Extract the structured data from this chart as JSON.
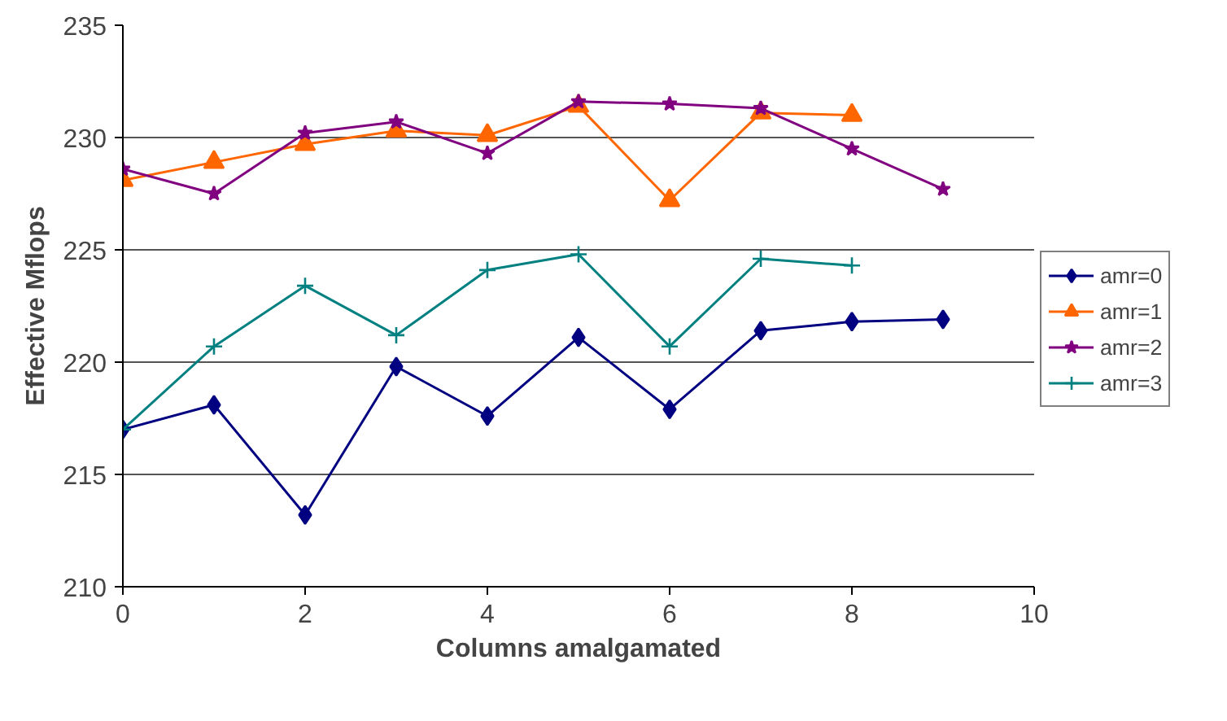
{
  "chart_data": {
    "type": "line",
    "xlabel": "Columns amalgamated",
    "ylabel": "Effective Mflops",
    "xlim": [
      0,
      10
    ],
    "ylim": [
      210,
      235
    ],
    "xticks": [
      0,
      2,
      4,
      6,
      8,
      10
    ],
    "yticks": [
      210,
      215,
      220,
      225,
      230,
      235
    ],
    "grid": "y",
    "legend": "right",
    "series": [
      {
        "name": "amr=0",
        "color": "#000080",
        "marker": "diamond",
        "x": [
          0,
          1,
          2,
          3,
          4,
          5,
          6,
          7,
          8,
          9
        ],
        "values": [
          217.0,
          218.1,
          213.2,
          219.8,
          217.6,
          221.1,
          217.9,
          221.4,
          221.8,
          221.9
        ]
      },
      {
        "name": "amr=1",
        "color": "#ff6600",
        "marker": "triangle",
        "x": [
          0,
          1,
          2,
          3,
          4,
          5,
          6,
          7,
          8
        ],
        "values": [
          228.1,
          228.9,
          229.7,
          230.3,
          230.1,
          231.4,
          227.2,
          231.1,
          231.0
        ]
      },
      {
        "name": "amr=2",
        "color": "#800080",
        "marker": "star",
        "x": [
          0,
          1,
          2,
          3,
          4,
          5,
          6,
          7,
          8,
          9
        ],
        "values": [
          228.6,
          227.5,
          230.2,
          230.7,
          229.3,
          231.6,
          231.5,
          231.3,
          229.5,
          227.7
        ]
      },
      {
        "name": "amr=3",
        "color": "#008080",
        "marker": "cross",
        "x": [
          0,
          1,
          2,
          3,
          4,
          5,
          6,
          7,
          8
        ],
        "values": [
          217.0,
          220.7,
          223.4,
          221.2,
          224.1,
          224.8,
          220.7,
          224.6,
          224.3
        ]
      }
    ]
  }
}
